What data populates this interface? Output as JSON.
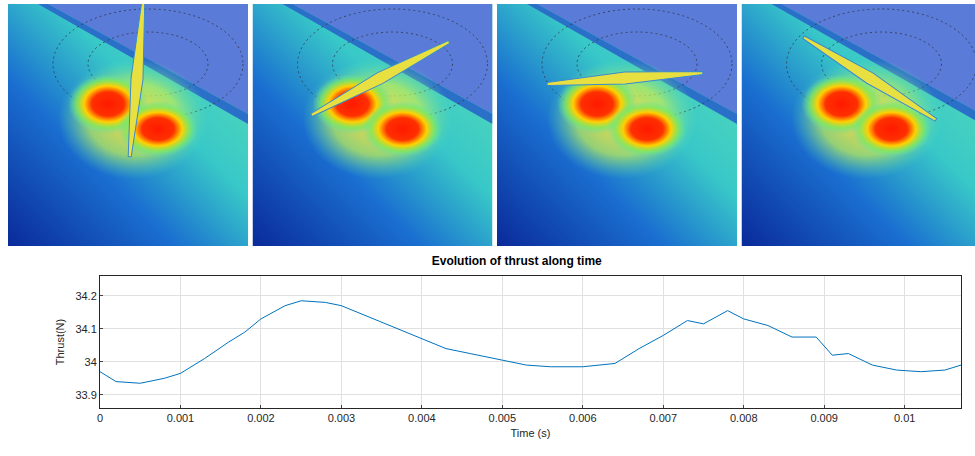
{
  "chart_data": {
    "type": "line",
    "title": "Evolution of thrust along time",
    "x_label": "Time (s)",
    "y_label": "Thrust(N)",
    "x": [
      0,
      0.0002,
      0.0005,
      0.0008,
      0.001,
      0.0013,
      0.0016,
      0.0018,
      0.002,
      0.0023,
      0.0025,
      0.0028,
      0.003,
      0.0033,
      0.0036,
      0.004,
      0.0043,
      0.0046,
      0.005,
      0.0053,
      0.0056,
      0.006,
      0.0064,
      0.0067,
      0.007,
      0.0073,
      0.0075,
      0.0078,
      0.008,
      0.0083,
      0.0086,
      0.0089,
      0.0091,
      0.0093,
      0.0096,
      0.0099,
      0.0102,
      0.0105,
      0.0107
    ],
    "values": [
      33.97,
      33.94,
      33.935,
      33.95,
      33.965,
      34.01,
      34.06,
      34.09,
      34.13,
      34.17,
      34.185,
      34.18,
      34.17,
      34.14,
      34.11,
      34.07,
      34.04,
      34.025,
      34.005,
      33.99,
      33.985,
      33.985,
      33.995,
      34.04,
      34.08,
      34.125,
      34.115,
      34.155,
      34.13,
      34.11,
      34.075,
      34.075,
      34.02,
      34.025,
      33.99,
      33.975,
      33.97,
      33.975,
      33.99
    ],
    "color": "#0072bd",
    "xlim": [
      0,
      0.0107
    ],
    "xticks": [
      0,
      0.001,
      0.002,
      0.003,
      0.004,
      0.005,
      0.006,
      0.007,
      0.008,
      0.009,
      0.01
    ],
    "ylim": [
      33.86,
      34.26
    ],
    "yticks": [
      33.9,
      34,
      34.1,
      34.2
    ],
    "grid": true
  }
}
